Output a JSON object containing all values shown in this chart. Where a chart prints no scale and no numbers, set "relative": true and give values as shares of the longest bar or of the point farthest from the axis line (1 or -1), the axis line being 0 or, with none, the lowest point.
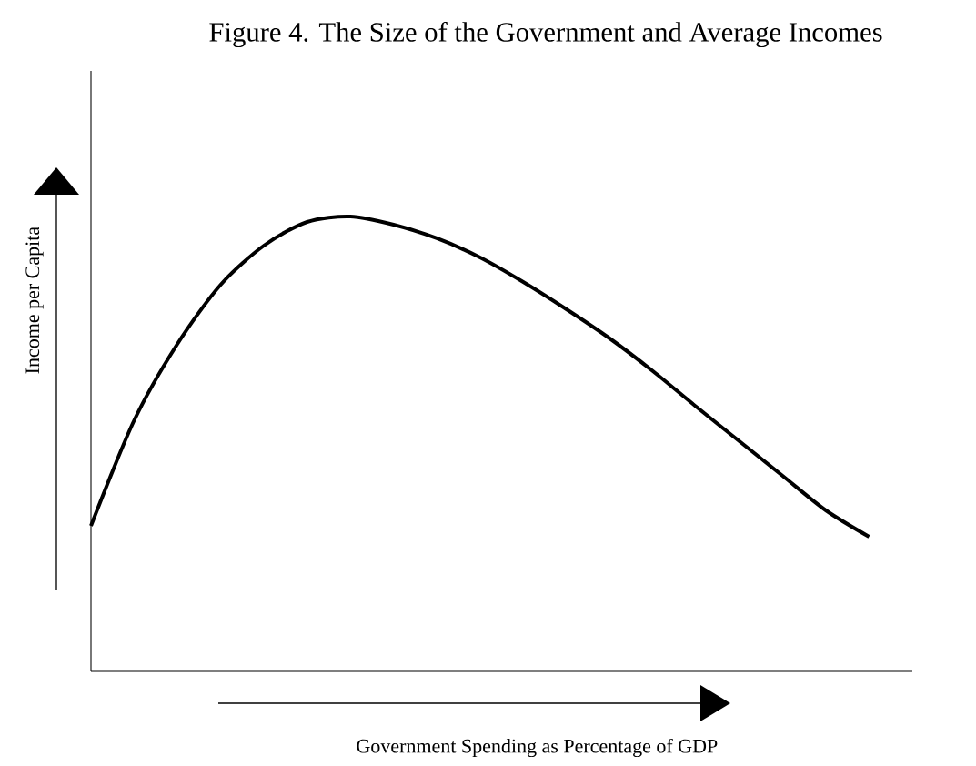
{
  "chart_data": {
    "type": "line",
    "title": "Figure 4. The Size of the Government and Average Incomes",
    "xlabel": "Government Spending as Percentage of GDP",
    "ylabel": "Income per Capita",
    "relative": true,
    "color": "#000000",
    "marker": "none",
    "categories": [
      null,
      null,
      null,
      null,
      null,
      null,
      null,
      null,
      null,
      null,
      null,
      null,
      null,
      null,
      null,
      null,
      null,
      null,
      null
    ],
    "values": [
      0.32,
      0.552,
      0.72,
      0.85,
      0.936,
      0.988,
      1,
      0.982,
      0.952,
      0.91,
      0.856,
      0.796,
      0.732,
      0.66,
      0.582,
      0.506,
      0.43,
      0.354,
      0.296
    ]
  }
}
